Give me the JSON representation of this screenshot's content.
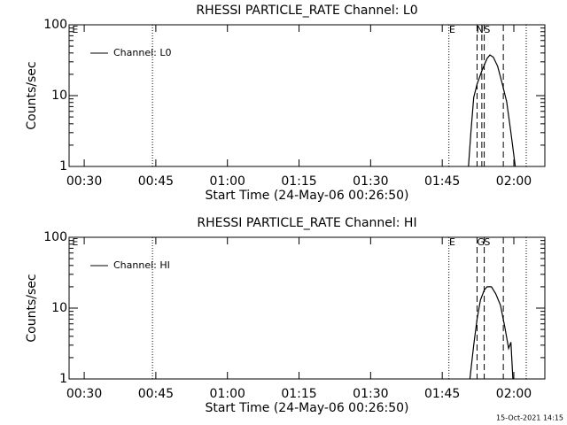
{
  "chart_data": [
    {
      "type": "line",
      "title": "RHESSI PARTICLE_RATE Channel: L0",
      "xlabel": "Start Time (24-May-06 00:26:50)",
      "ylabel": "Counts/sec",
      "xlim": [
        26.83,
        126.5
      ],
      "xticks": [
        {
          "value": 30,
          "label": "00:30"
        },
        {
          "value": 45,
          "label": "00:45"
        },
        {
          "value": 60,
          "label": "01:00"
        },
        {
          "value": 75,
          "label": "01:15"
        },
        {
          "value": 90,
          "label": "01:30"
        },
        {
          "value": 105,
          "label": "01:45"
        },
        {
          "value": 120,
          "label": "02:00"
        }
      ],
      "ylim": [
        1,
        100
      ],
      "yticks": [
        1,
        10,
        100
      ],
      "log_y": true,
      "series": [
        {
          "name": "Channel: L0",
          "color": "#000000",
          "x": [
            110.5,
            111.0,
            111.6,
            112.3,
            113.3,
            114.4,
            115.0,
            115.7,
            116.6,
            117.5,
            118.5,
            119.4,
            120.3
          ],
          "values": [
            1,
            3,
            9.4,
            14.5,
            22.4,
            33.5,
            37.5,
            35,
            26,
            15.4,
            8.2,
            3,
            1
          ]
        }
      ],
      "vlines": [
        {
          "x": 44.3,
          "style": "dotted"
        },
        {
          "x": 106.4,
          "style": "dotted"
        },
        {
          "x": 112.3,
          "style": "dashed"
        },
        {
          "x": 113.3,
          "style": "dashed"
        },
        {
          "x": 113.8,
          "style": "dashed"
        },
        {
          "x": 117.8,
          "style": "dashed"
        },
        {
          "x": 122.6,
          "style": "dotted"
        }
      ],
      "annotations": [
        {
          "text": "E",
          "x": 28.1
        },
        {
          "text": "E",
          "x": 107.1
        },
        {
          "text": "N",
          "x": 112.9
        },
        {
          "text": "S",
          "x": 114.4
        }
      ]
    },
    {
      "type": "line",
      "title": "RHESSI PARTICLE_RATE Channel: HI",
      "xlabel": "Start Time (24-May-06 00:26:50)",
      "ylabel": "Counts/sec",
      "xlim": [
        26.83,
        126.5
      ],
      "xticks": [
        {
          "value": 30,
          "label": "00:30"
        },
        {
          "value": 45,
          "label": "00:45"
        },
        {
          "value": 60,
          "label": "01:00"
        },
        {
          "value": 75,
          "label": "01:15"
        },
        {
          "value": 90,
          "label": "01:30"
        },
        {
          "value": 105,
          "label": "01:45"
        },
        {
          "value": 120,
          "label": "02:00"
        }
      ],
      "ylim": [
        1,
        100
      ],
      "yticks": [
        1,
        10,
        100
      ],
      "log_y": true,
      "series": [
        {
          "name": "Channel: HI",
          "color": "#000000",
          "x": [
            110.8,
            111.6,
            112.3,
            113.0,
            113.8,
            114.4,
            115.3,
            116.2,
            117.2,
            118.1,
            118.9,
            119.4,
            119.8
          ],
          "values": [
            1,
            3,
            7,
            13,
            18,
            20,
            20,
            16,
            11,
            5.5,
            2.7,
            3.3,
            1
          ]
        }
      ],
      "vlines": [
        {
          "x": 44.3,
          "style": "dotted"
        },
        {
          "x": 106.4,
          "style": "dotted"
        },
        {
          "x": 112.3,
          "style": "dashed"
        },
        {
          "x": 113.8,
          "style": "dashed"
        },
        {
          "x": 117.8,
          "style": "dashed"
        },
        {
          "x": 122.6,
          "style": "dotted"
        }
      ],
      "annotations": [
        {
          "text": "E",
          "x": 28.1
        },
        {
          "text": "E",
          "x": 107.1
        },
        {
          "text": "G",
          "x": 113.1
        },
        {
          "text": "S",
          "x": 114.4
        }
      ]
    }
  ],
  "footer": "15-Oct-2021 14:15"
}
